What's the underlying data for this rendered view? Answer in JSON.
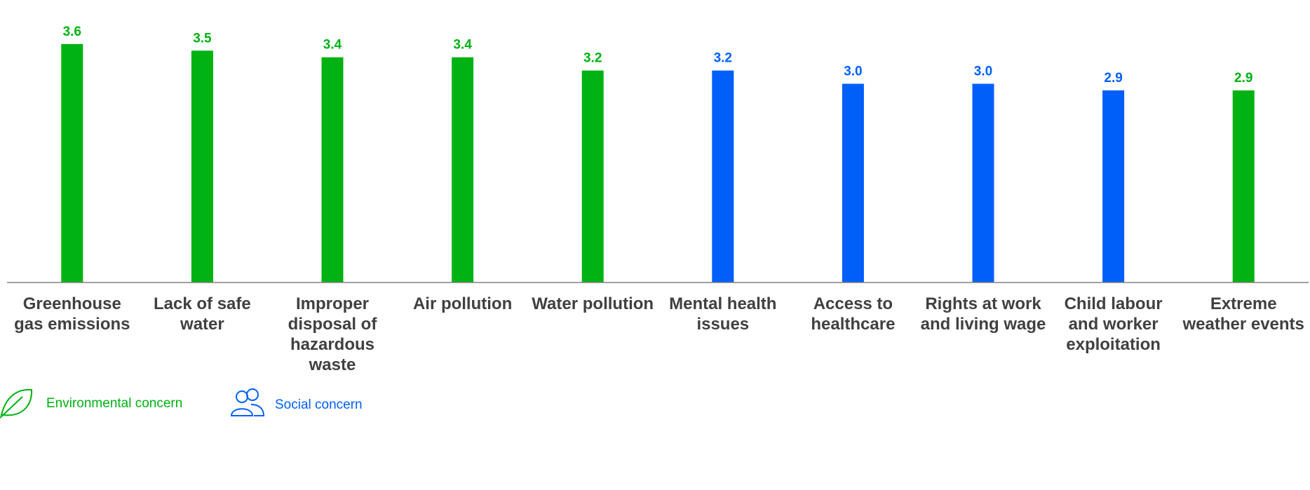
{
  "chart_data": {
    "type": "bar",
    "categories": [
      "Greenhouse gas emissions",
      "Lack of safe water",
      "Improper disposal of hazardous waste",
      "Air pollution",
      "Water pollution",
      "Mental health issues",
      "Access to healthcare",
      "Rights at work and living wage",
      "Child labour and worker exploitation",
      "Extreme weather events"
    ],
    "values": [
      3.6,
      3.5,
      3.4,
      3.4,
      3.2,
      3.2,
      3.0,
      3.0,
      2.9,
      2.9
    ],
    "value_labels": [
      "3.6",
      "3.5",
      "3.4",
      "3.4",
      "3.2",
      "3.2",
      "3.0",
      "3.0",
      "2.9",
      "2.9"
    ],
    "colors": [
      "#00b212",
      "#00b212",
      "#00b212",
      "#00b212",
      "#00b212",
      "#005ff9",
      "#005ff9",
      "#005ff9",
      "#005ff9",
      "#00b212"
    ],
    "ylim": [
      0,
      4
    ],
    "legend": [
      {
        "name": "Environmental concern",
        "color": "#00b212"
      },
      {
        "name": "Social concern",
        "color": "#005ff9"
      }
    ]
  }
}
